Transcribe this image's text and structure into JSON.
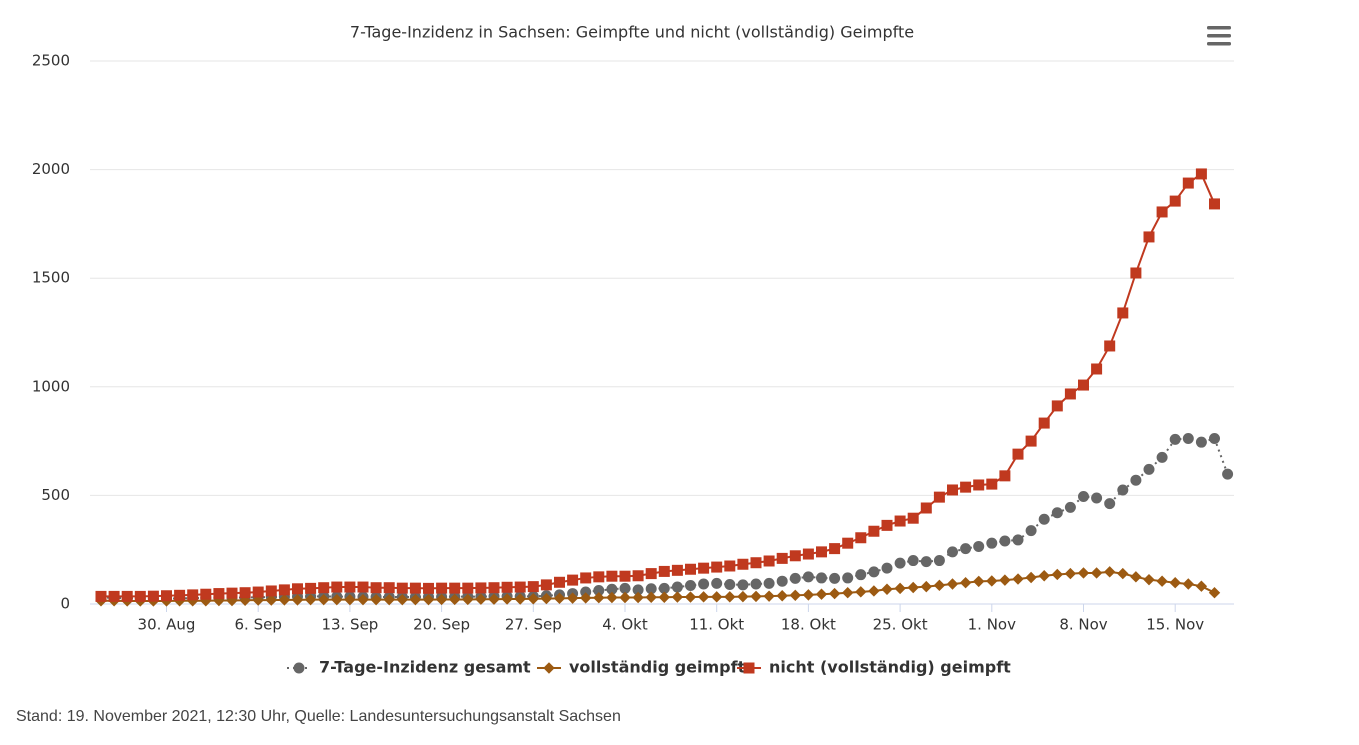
{
  "chart_data": {
    "type": "line",
    "title": "7-Tage-Inzidenz in Sachsen: Geimpfte und nicht (vollständig) Geimpfte",
    "categories": [
      null,
      null,
      null,
      null,
      null,
      "30. Aug",
      null,
      null,
      null,
      null,
      null,
      null,
      "6. Sep",
      null,
      null,
      null,
      null,
      null,
      null,
      "13. Sep",
      null,
      null,
      null,
      null,
      null,
      null,
      "20. Sep",
      null,
      null,
      null,
      null,
      null,
      null,
      "27. Sep",
      null,
      null,
      null,
      null,
      null,
      null,
      "4. Okt",
      null,
      null,
      null,
      null,
      null,
      null,
      "11. Okt",
      null,
      null,
      null,
      null,
      null,
      null,
      "18. Okt",
      null,
      null,
      null,
      null,
      null,
      null,
      "25. Okt",
      null,
      null,
      null,
      null,
      null,
      null,
      "1. Nov",
      null,
      null,
      null,
      null,
      null,
      null,
      "8. Nov",
      null,
      null,
      null,
      null,
      null,
      null,
      "15. Nov",
      null,
      null,
      null,
      null
    ],
    "series": [
      {
        "name": "7-Tage-Inzidenz gesamt",
        "color": "#666666",
        "marker": "circle",
        "line_style": "dotted",
        "values": [
          30,
          28,
          27,
          26,
          25,
          25,
          26,
          27,
          28,
          28,
          29,
          30,
          31,
          32,
          33,
          34,
          35,
          35,
          34,
          34,
          33,
          33,
          32,
          32,
          32,
          33,
          33,
          34,
          34,
          34,
          35,
          35,
          35,
          35,
          38,
          42,
          48,
          55,
          62,
          68,
          72,
          65,
          70,
          72,
          78,
          85,
          92,
          95,
          90,
          88,
          92,
          95,
          105,
          118,
          125,
          120,
          118,
          120,
          135,
          148,
          165,
          188,
          200,
          195,
          200,
          240,
          255,
          265,
          280,
          290,
          295,
          338,
          390,
          420,
          445,
          495,
          488,
          462,
          525,
          570,
          620,
          675,
          758,
          762,
          745,
          762,
          598
        ]
      },
      {
        "name": "vollständig geimpft",
        "color": "#9c5a12",
        "marker": "diamond",
        "line_style": "solid",
        "values": [
          15,
          15,
          14,
          14,
          14,
          14,
          15,
          15,
          15,
          16,
          16,
          17,
          18,
          18,
          19,
          19,
          20,
          20,
          20,
          20,
          20,
          20,
          20,
          20,
          20,
          20,
          21,
          21,
          21,
          22,
          22,
          23,
          23,
          24,
          25,
          26,
          27,
          28,
          29,
          30,
          30,
          30,
          31,
          31,
          32,
          32,
          33,
          33,
          33,
          34,
          35,
          36,
          38,
          40,
          42,
          45,
          48,
          52,
          56,
          60,
          68,
          72,
          76,
          80,
          86,
          92,
          98,
          104,
          106,
          110,
          115,
          122,
          130,
          136,
          140,
          143,
          143,
          148,
          140,
          125,
          112,
          105,
          98,
          92,
          82,
          52,
          null
        ]
      },
      {
        "name": "nicht (vollständig) geimpft",
        "color": "#c0391f",
        "marker": "square",
        "line_style": "solid",
        "values": [
          35,
          35,
          35,
          35,
          36,
          38,
          40,
          42,
          45,
          48,
          50,
          52,
          55,
          60,
          65,
          70,
          72,
          75,
          78,
          78,
          78,
          75,
          75,
          73,
          73,
          72,
          73,
          73,
          73,
          74,
          75,
          77,
          78,
          80,
          88,
          100,
          110,
          120,
          125,
          128,
          128,
          130,
          140,
          150,
          155,
          160,
          165,
          170,
          175,
          183,
          190,
          198,
          210,
          222,
          230,
          240,
          255,
          280,
          305,
          335,
          362,
          382,
          395,
          442,
          492,
          525,
          538,
          548,
          552,
          590,
          690,
          750,
          833,
          912,
          967,
          1008,
          1082,
          1188,
          1340,
          1524,
          1690,
          1805,
          1855,
          1938,
          1980,
          1842,
          null
        ]
      }
    ],
    "ylim": [
      0,
      2500
    ],
    "yticks": [
      0,
      500,
      1000,
      1500,
      2000,
      2500
    ],
    "grid": true,
    "legend": "bottom"
  },
  "footer": "Stand: 19. November 2021, 12:30 Uhr, Quelle: Landesuntersuchungsanstalt Sachsen"
}
